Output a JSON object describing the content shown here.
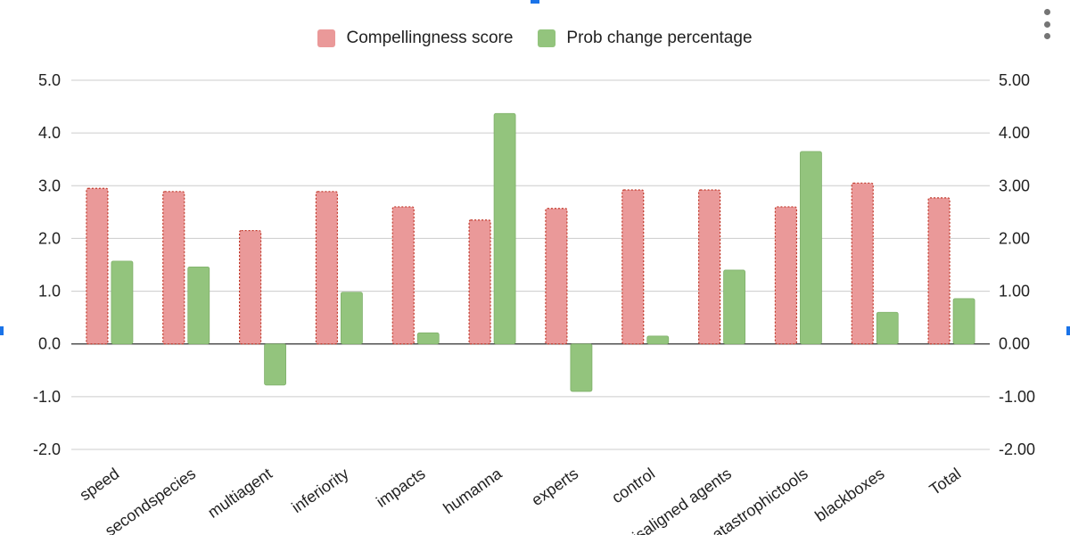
{
  "chart_data": {
    "type": "bar",
    "categories": [
      "speed",
      "secondspecies",
      "multiagent",
      "inferiority",
      "impacts",
      "humanna",
      "experts",
      "control",
      "misaligned agents",
      "catastrophictools",
      "blackboxes",
      "Total"
    ],
    "series": [
      {
        "name": "Compellingness score",
        "color": "#ea9999",
        "values": [
          2.95,
          2.89,
          2.15,
          2.89,
          2.6,
          2.35,
          2.57,
          2.92,
          2.92,
          2.6,
          3.05,
          2.77
        ]
      },
      {
        "name": "Prob change percentage",
        "color": "#93c47d",
        "values": [
          1.57,
          1.46,
          -0.78,
          0.98,
          0.21,
          4.37,
          -0.9,
          0.15,
          1.4,
          3.65,
          0.6,
          0.86
        ]
      }
    ],
    "left_axis": {
      "ticks": [
        5,
        4,
        3,
        2,
        1,
        0,
        -1,
        -2
      ],
      "tick_labels": [
        "5.0",
        "4.0",
        "3.0",
        "2.0",
        "1.0",
        "0.0",
        "-1.0",
        "-2.0"
      ]
    },
    "right_axis": {
      "ticks": [
        5,
        4,
        3,
        2,
        1,
        0,
        -1,
        -2
      ],
      "tick_labels": [
        "5.00",
        "4.00",
        "3.00",
        "2.00",
        "1.00",
        "0.00",
        "-1.00",
        "-2.00"
      ]
    },
    "ylim": [
      -2,
      5
    ],
    "grid": true,
    "legend_position": "top",
    "title": "",
    "xlabel": "",
    "ylabel": ""
  },
  "legend": {
    "series1_label": "Compellingness score",
    "series2_label": "Prob change percentage"
  },
  "colors": {
    "series1": "#ea9999",
    "series2": "#93c47d",
    "selection": "#1a73e8"
  }
}
